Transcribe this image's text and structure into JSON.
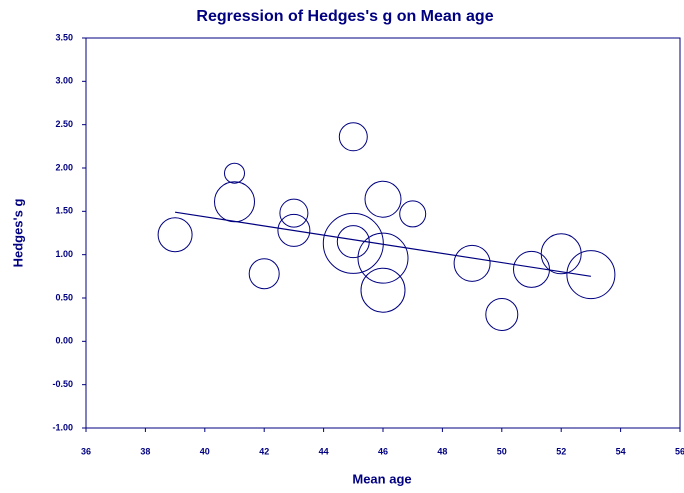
{
  "chart_data": {
    "type": "scatter",
    "title": "Regression of Hedges's g on Mean age",
    "x_label": "Mean age",
    "y_label": "Hedges's g",
    "color": "#000080",
    "series": [
      {
        "name": "Studies",
        "x": [
          39,
          41,
          41,
          42,
          43,
          43,
          45,
          45,
          45,
          46,
          46,
          46,
          47,
          49,
          50,
          51,
          52,
          53
        ],
        "values": [
          1.23,
          1.94,
          1.61,
          0.78,
          1.48,
          1.28,
          2.36,
          1.13,
          1.15,
          1.64,
          0.96,
          0.59,
          1.47,
          0.9,
          0.31,
          0.83,
          1.01,
          0.77
        ],
        "sizes": [
          17,
          10,
          20,
          15,
          14,
          16,
          14,
          30,
          16,
          18,
          25,
          22,
          13,
          18,
          16,
          18,
          20,
          24
        ]
      }
    ],
    "regression_line": {
      "x": [
        39,
        53
      ],
      "y": [
        1.49,
        0.75
      ]
    },
    "xlim": [
      36,
      56
    ],
    "xticks": [
      36,
      38,
      40,
      42,
      44,
      46,
      48,
      50,
      52,
      54,
      56
    ],
    "ylim": [
      -1,
      3.5
    ],
    "yticks": [
      {
        "value": -1,
        "label": "-1.00"
      },
      {
        "value": -0.5,
        "label": "-0.50"
      },
      {
        "value": 0,
        "label": "0.00"
      },
      {
        "value": 0.5,
        "label": "0.50"
      },
      {
        "value": 1,
        "label": "1.00"
      },
      {
        "value": 1.5,
        "label": "1.50"
      },
      {
        "value": 2,
        "label": "2.00"
      },
      {
        "value": 2.5,
        "label": "2.50"
      },
      {
        "value": 3,
        "label": "3.00"
      },
      {
        "value": 3.5,
        "label": "3.50"
      }
    ]
  }
}
